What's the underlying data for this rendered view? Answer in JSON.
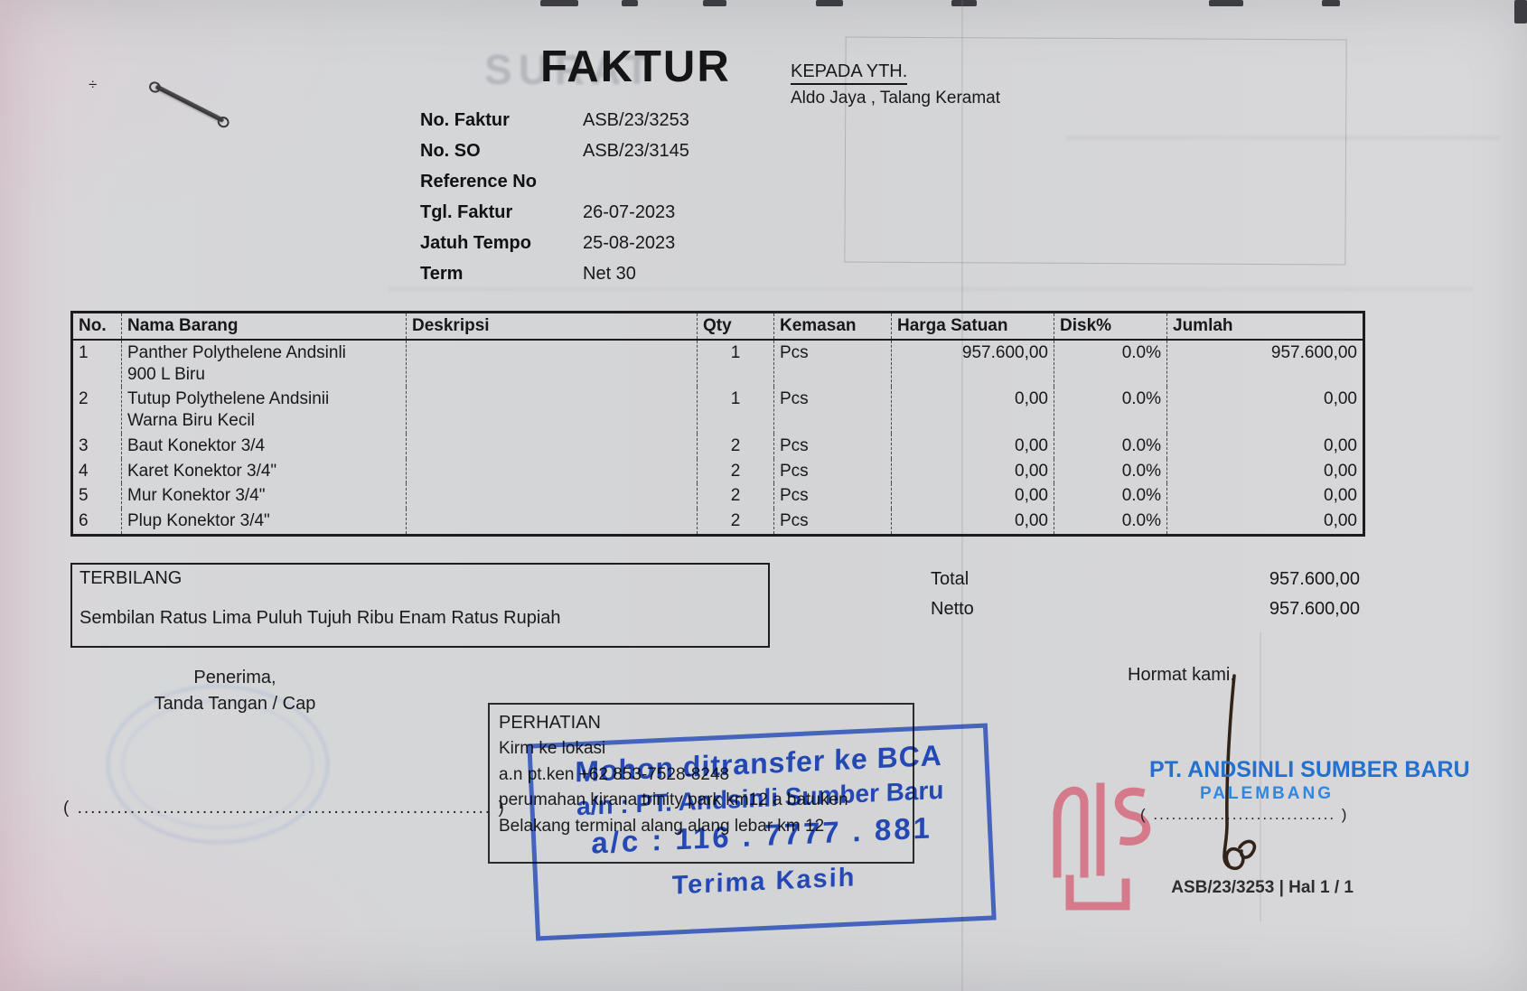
{
  "document": {
    "title": "FAKTUR",
    "ghost_title": "SURAT",
    "recipient": {
      "label": "KEPADA YTH.",
      "name": "Aldo Jaya , Talang Keramat"
    },
    "meta": [
      {
        "label": "No. Faktur",
        "value": "ASB/23/3253"
      },
      {
        "label": "No. SO",
        "value": "ASB/23/3145"
      },
      {
        "label": "Reference No",
        "value": ""
      },
      {
        "label": "Tgl. Faktur",
        "value": "26-07-2023"
      },
      {
        "label": "Jatuh Tempo",
        "value": "25-08-2023"
      },
      {
        "label": "Term",
        "value": "Net 30"
      }
    ]
  },
  "items_table": {
    "columns": [
      "No.",
      "Nama Barang",
      "Deskripsi",
      "Qty",
      "Kemasan",
      "Harga Satuan",
      "Disk%",
      "Jumlah"
    ],
    "rows": [
      {
        "no": "1",
        "nama": "Panther Polythelene Andsinli\n900 L Biru",
        "deskripsi": "",
        "qty": "1",
        "kemasan": "Pcs",
        "harga": "957.600,00",
        "disk": "0.0%",
        "jumlah": "957.600,00"
      },
      {
        "no": "2",
        "nama": "Tutup Polythelene Andsinii\nWarna Biru Kecil",
        "deskripsi": "",
        "qty": "1",
        "kemasan": "Pcs",
        "harga": "0,00",
        "disk": "0.0%",
        "jumlah": "0,00"
      },
      {
        "no": "3",
        "nama": "Baut Konektor 3/4",
        "deskripsi": "",
        "qty": "2",
        "kemasan": "Pcs",
        "harga": "0,00",
        "disk": "0.0%",
        "jumlah": "0,00"
      },
      {
        "no": "4",
        "nama": "Karet Konektor 3/4\"",
        "deskripsi": "",
        "qty": "2",
        "kemasan": "Pcs",
        "harga": "0,00",
        "disk": "0.0%",
        "jumlah": "0,00"
      },
      {
        "no": "5",
        "nama": "Mur Konektor 3/4\"",
        "deskripsi": "",
        "qty": "2",
        "kemasan": "Pcs",
        "harga": "0,00",
        "disk": "0.0%",
        "jumlah": "0,00"
      },
      {
        "no": "6",
        "nama": "Plup Konektor 3/4\"",
        "deskripsi": "",
        "qty": "2",
        "kemasan": "Pcs",
        "harga": "0,00",
        "disk": "0.0%",
        "jumlah": "0,00"
      }
    ]
  },
  "summary": {
    "terbilang_label": "TERBILANG",
    "terbilang_text": "Sembilan Ratus Lima Puluh Tujuh Ribu Enam Ratus Rupiah",
    "total_label": "Total",
    "total_value": "957.600,00",
    "netto_label": "Netto",
    "netto_value": "957.600,00"
  },
  "sign_left": {
    "line1": "Penerima,",
    "line2": "Tanda Tangan / Cap",
    "dotted": "( ...............................................................  )"
  },
  "perhatian": {
    "title": "PERHATIAN",
    "line1": "Kirm ke lokasi",
    "line2": "a.n pt.ken +62 853-7528-8248",
    "line3": "perumahan kirana trinity park km12 a batuken",
    "line4": "Belakang terminal alang alang lebar km 12"
  },
  "bank_stamp": {
    "line1": "Mohon ditransfer ke BCA",
    "line2": "a/n :  PT. Andsinli Sumber Baru",
    "line3": "a/c : 116 . 7777 . 881",
    "line4": "Terima Kasih",
    "color": "#2b56d6"
  },
  "sign_right": {
    "label": "Hormat kami,",
    "company": "PT. ANDSINLI SUMBER BARU",
    "city": "PALEMBANG",
    "dotted": "( ..............................  )"
  },
  "page_footer": {
    "text": "ASB/23/3253 | Hal 1 / 1"
  },
  "colors": {
    "stamp_blue": "#2b56d6",
    "company_blue": "#2470ce",
    "seal_red": "#d4576e"
  }
}
